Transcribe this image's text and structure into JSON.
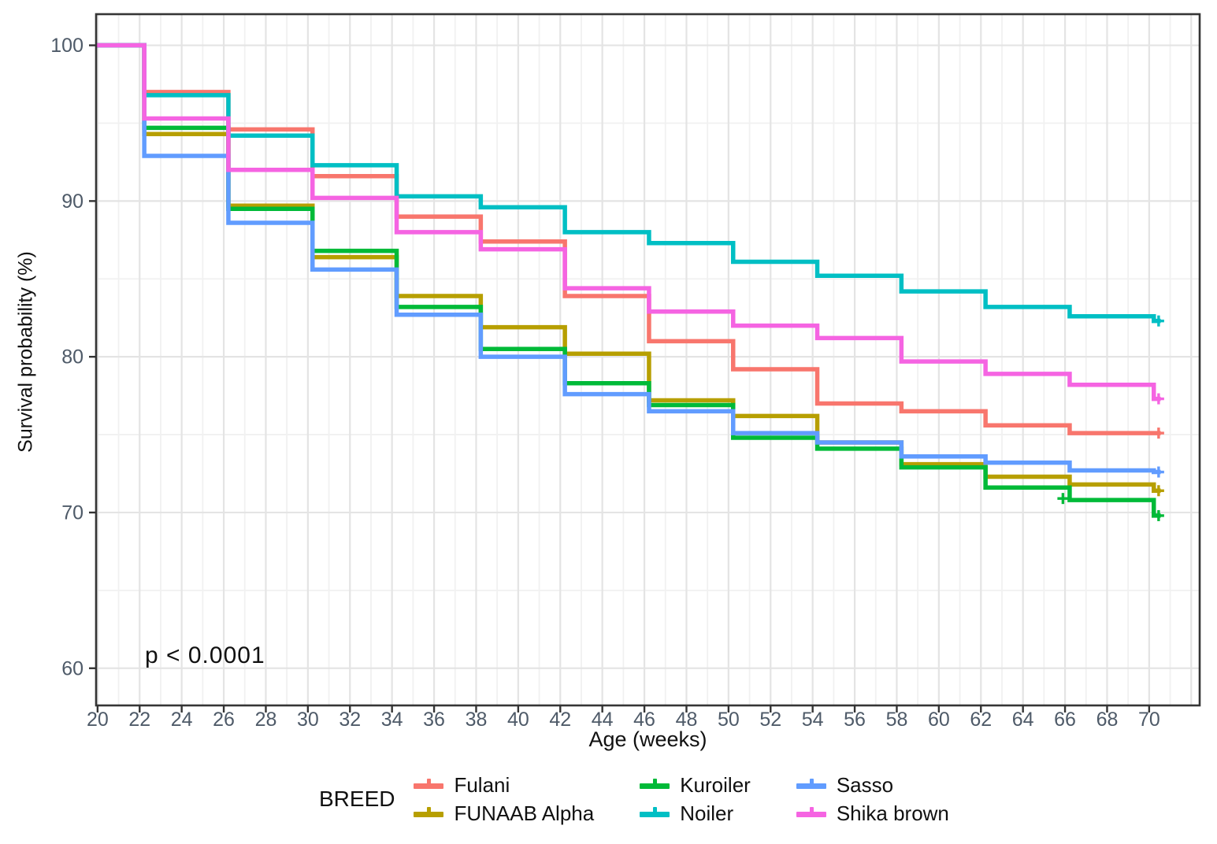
{
  "chart_data": {
    "type": "line",
    "subtype": "kaplan-meier-step-survival",
    "title": "",
    "xlabel": "Age (weeks)",
    "ylabel": "Survival probability (%)",
    "annotation": "p < 0.0001",
    "legend_title": "BREED",
    "legend_position": "bottom",
    "grid": true,
    "xlim": [
      19.9,
      72.4
    ],
    "ylim": [
      57.6,
      102
    ],
    "x_ticks": [
      20,
      22,
      24,
      26,
      28,
      30,
      32,
      34,
      36,
      38,
      40,
      42,
      44,
      46,
      48,
      50,
      52,
      54,
      56,
      58,
      60,
      62,
      64,
      66,
      68,
      70
    ],
    "y_ticks": [
      60,
      70,
      80,
      90,
      100
    ],
    "y_minor_ticks": [
      65,
      75,
      85,
      95
    ],
    "step_times": [
      20,
      22,
      26,
      30,
      34,
      38,
      42,
      46,
      50,
      54,
      58,
      62,
      66,
      70
    ],
    "censor_mark": "plus-at-week-70",
    "series": [
      {
        "name": "Fulani",
        "color": "#F8766D",
        "values": [
          100,
          97.0,
          94.6,
          91.6,
          89.0,
          87.4,
          83.9,
          81.0,
          79.2,
          77.0,
          76.5,
          75.6,
          75.1,
          75.1
        ]
      },
      {
        "name": "FUNAAB Alpha",
        "color": "#B79F00",
        "values": [
          100,
          94.3,
          89.7,
          86.4,
          83.9,
          81.9,
          80.2,
          77.2,
          76.2,
          74.5,
          73.1,
          72.3,
          71.8,
          71.4
        ]
      },
      {
        "name": "Kuroiler",
        "color": "#00BA38",
        "values": [
          100,
          94.7,
          89.5,
          86.8,
          83.2,
          80.5,
          78.3,
          76.9,
          74.8,
          74.1,
          72.9,
          71.6,
          70.8,
          69.8
        ],
        "extra_censors": [
          {
            "x": 65.9,
            "y": 70.9
          }
        ]
      },
      {
        "name": "Noiler",
        "color": "#00BFC4",
        "values": [
          100,
          96.8,
          94.2,
          92.3,
          90.3,
          89.6,
          88.0,
          87.3,
          86.1,
          85.2,
          84.2,
          83.2,
          82.6,
          82.3
        ]
      },
      {
        "name": "Sasso",
        "color": "#619CFF",
        "values": [
          100,
          92.9,
          88.6,
          85.6,
          82.7,
          80.0,
          77.6,
          76.5,
          75.1,
          74.5,
          73.6,
          73.2,
          72.7,
          72.6
        ]
      },
      {
        "name": "Shika brown",
        "color": "#F564E2",
        "values": [
          100,
          95.3,
          92.0,
          90.2,
          88.0,
          86.9,
          84.4,
          82.9,
          82.0,
          81.2,
          79.7,
          78.9,
          78.2,
          77.3
        ]
      }
    ],
    "colors": {
      "major_grid": "#e4e4e4",
      "minor_grid": "#f1f1f1",
      "panel_border": "#353535",
      "tick_label": "#4e5a68",
      "axis_title": "#111111"
    }
  }
}
